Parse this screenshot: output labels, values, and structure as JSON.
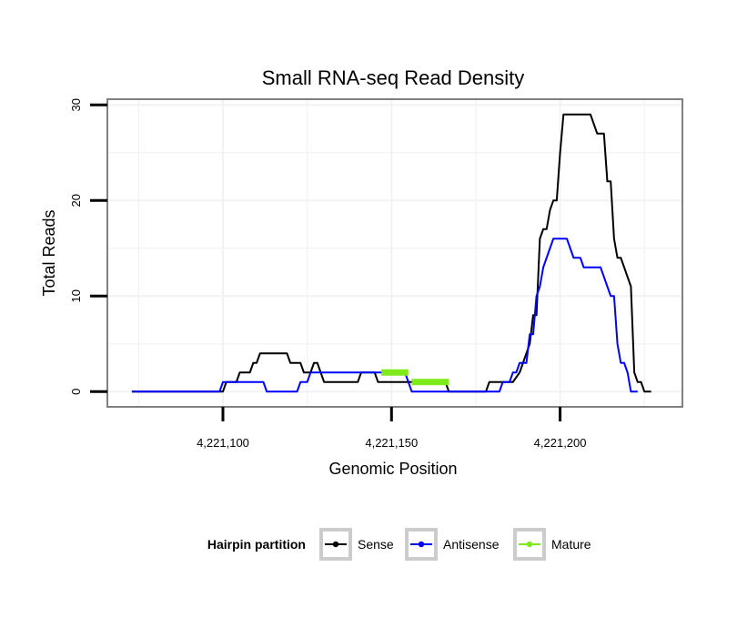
{
  "chart_data": {
    "type": "line",
    "title": "Small RNA-seq Read Density",
    "xlabel": "Genomic Position",
    "ylabel": "Total Reads",
    "xlim": [
      4221066,
      4221236
    ],
    "ylim": [
      -1.5,
      30.5
    ],
    "xticks": [
      4221100,
      4221150,
      4221200
    ],
    "xtick_labels": [
      "4,221,100",
      "4,221,150",
      "4,221,200"
    ],
    "yticks": [
      0,
      10,
      20,
      30
    ],
    "ytick_labels": [
      "0",
      "10",
      "20",
      "30"
    ],
    "grid": true,
    "legend": {
      "title": "Hairpin partition",
      "position": "bottom",
      "entries": [
        "Sense",
        "Antisense",
        "Mature"
      ]
    },
    "colors": {
      "Sense": "#000000",
      "Antisense": "#0000ff",
      "Mature": "#7fea1a"
    },
    "series": [
      {
        "name": "Sense",
        "points": [
          [
            4221073,
            0
          ],
          [
            4221100,
            0
          ],
          [
            4221101,
            1
          ],
          [
            4221104,
            1
          ],
          [
            4221105,
            2
          ],
          [
            4221108,
            2
          ],
          [
            4221109,
            3
          ],
          [
            4221110,
            3
          ],
          [
            4221111,
            4
          ],
          [
            4221119,
            4
          ],
          [
            4221120,
            3
          ],
          [
            4221123,
            3
          ],
          [
            4221124,
            2
          ],
          [
            4221126,
            2
          ],
          [
            4221127,
            3
          ],
          [
            4221128,
            3
          ],
          [
            4221129,
            2
          ],
          [
            4221130,
            1
          ],
          [
            4221140,
            1
          ],
          [
            4221141,
            2
          ],
          [
            4221145,
            2
          ],
          [
            4221146,
            1
          ],
          [
            4221166,
            1
          ],
          [
            4221167,
            0
          ],
          [
            4221178,
            0
          ],
          [
            4221179,
            1
          ],
          [
            4221186,
            1
          ],
          [
            4221188,
            2
          ],
          [
            4221189,
            3
          ],
          [
            4221190,
            4
          ],
          [
            4221191,
            5
          ],
          [
            4221192,
            8
          ],
          [
            4221193,
            8
          ],
          [
            4221194,
            16
          ],
          [
            4221195,
            17
          ],
          [
            4221196,
            17
          ],
          [
            4221197,
            19
          ],
          [
            4221198,
            20
          ],
          [
            4221199,
            20
          ],
          [
            4221200,
            25
          ],
          [
            4221201,
            29
          ],
          [
            4221209,
            29
          ],
          [
            4221211,
            27
          ],
          [
            4221213,
            27
          ],
          [
            4221214,
            22
          ],
          [
            4221215,
            22
          ],
          [
            4221216,
            16
          ],
          [
            4221217,
            14
          ],
          [
            4221218,
            14
          ],
          [
            4221220,
            12
          ],
          [
            4221221,
            11
          ],
          [
            4221222,
            2
          ],
          [
            4221223,
            1
          ],
          [
            4221224,
            1
          ],
          [
            4221225,
            0
          ],
          [
            4221227,
            0
          ]
        ]
      },
      {
        "name": "Antisense",
        "points": [
          [
            4221073,
            0
          ],
          [
            4221099,
            0
          ],
          [
            4221100,
            1
          ],
          [
            4221101,
            1
          ],
          [
            4221112,
            1
          ],
          [
            4221113,
            0
          ],
          [
            4221122,
            0
          ],
          [
            4221123,
            1
          ],
          [
            4221125,
            1
          ],
          [
            4221126,
            2
          ],
          [
            4221154,
            2
          ],
          [
            4221155,
            1
          ],
          [
            4221156,
            0
          ],
          [
            4221178,
            0
          ],
          [
            4221182,
            0
          ],
          [
            4221183,
            1
          ],
          [
            4221185,
            1
          ],
          [
            4221186,
            2
          ],
          [
            4221187,
            2
          ],
          [
            4221188,
            3
          ],
          [
            4221190,
            3
          ],
          [
            4221191,
            6
          ],
          [
            4221192,
            6
          ],
          [
            4221193,
            10
          ],
          [
            4221194,
            11
          ],
          [
            4221195,
            13
          ],
          [
            4221196,
            14
          ],
          [
            4221197,
            15
          ],
          [
            4221198,
            16
          ],
          [
            4221202,
            16
          ],
          [
            4221204,
            14
          ],
          [
            4221206,
            14
          ],
          [
            4221207,
            13
          ],
          [
            4221212,
            13
          ],
          [
            4221214,
            11
          ],
          [
            4221215,
            10
          ],
          [
            4221216,
            10
          ],
          [
            4221217,
            5
          ],
          [
            4221218,
            3
          ],
          [
            4221219,
            3
          ],
          [
            4221220,
            2
          ],
          [
            4221221,
            0
          ],
          [
            4221223,
            0
          ]
        ]
      },
      {
        "name": "Mature",
        "points": [
          [
            4221147,
            2
          ],
          [
            4221155,
            2
          ],
          null,
          [
            4221156,
            1
          ],
          [
            4221167,
            1
          ]
        ]
      }
    ]
  }
}
